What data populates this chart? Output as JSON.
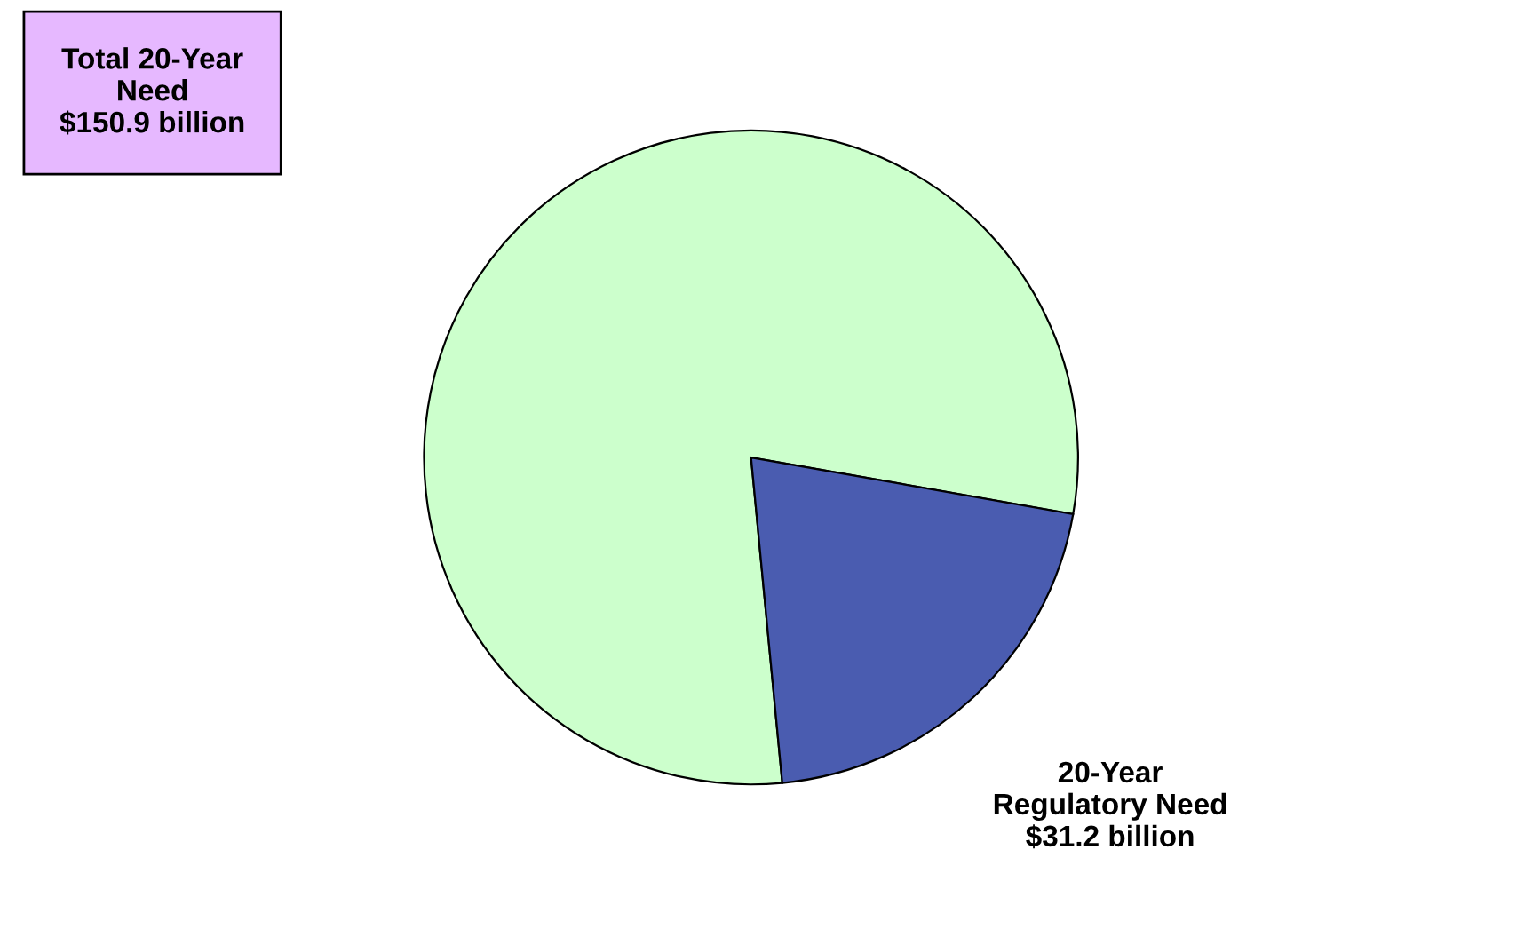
{
  "chart_data": {
    "type": "pie",
    "categories": [
      null,
      "20-Year\nRegulatory Need\n$31.2 billion"
    ],
    "values": [
      79.3,
      20.7
    ],
    "colors": [
      "#ccffcc",
      "#4a5cb0"
    ],
    "annotations": [
      "Total 20-Year\nNeed\n$150.9 billion"
    ]
  }
}
